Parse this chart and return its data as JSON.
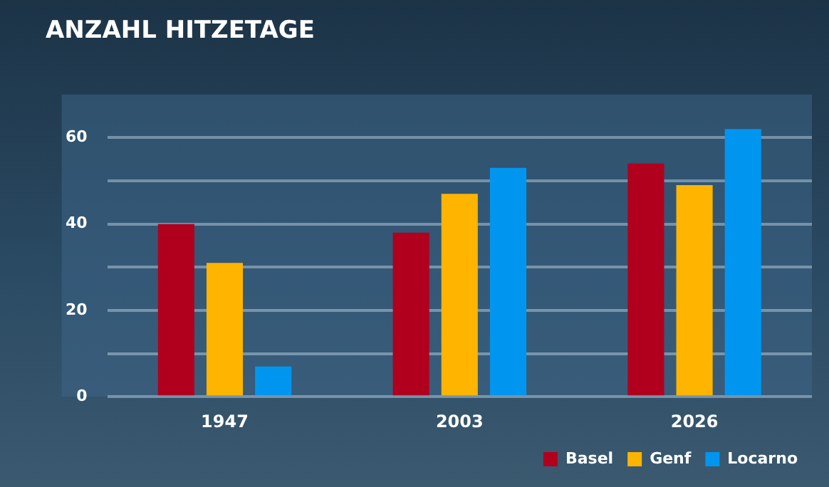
{
  "chart_data": {
    "type": "bar",
    "title": "ANZAHL HITZETAGE",
    "categories": [
      "1947",
      "2003",
      "2026"
    ],
    "series": [
      {
        "name": "Basel",
        "color": "#b0001e",
        "values": [
          40,
          38,
          54
        ]
      },
      {
        "name": "Genf",
        "color": "#ffb400",
        "values": [
          31,
          47,
          49
        ]
      },
      {
        "name": "Locarno",
        "color": "#0096f0",
        "values": [
          7,
          53,
          62
        ]
      }
    ],
    "ylim": [
      0,
      70
    ],
    "yticks": [
      0,
      {
        "value": 10,
        "label": null
      },
      20,
      {
        "value": 30,
        "label": null
      },
      40,
      {
        "value": 50,
        "label": null
      },
      60
    ],
    "grid": "y",
    "legend": "bottom right"
  }
}
